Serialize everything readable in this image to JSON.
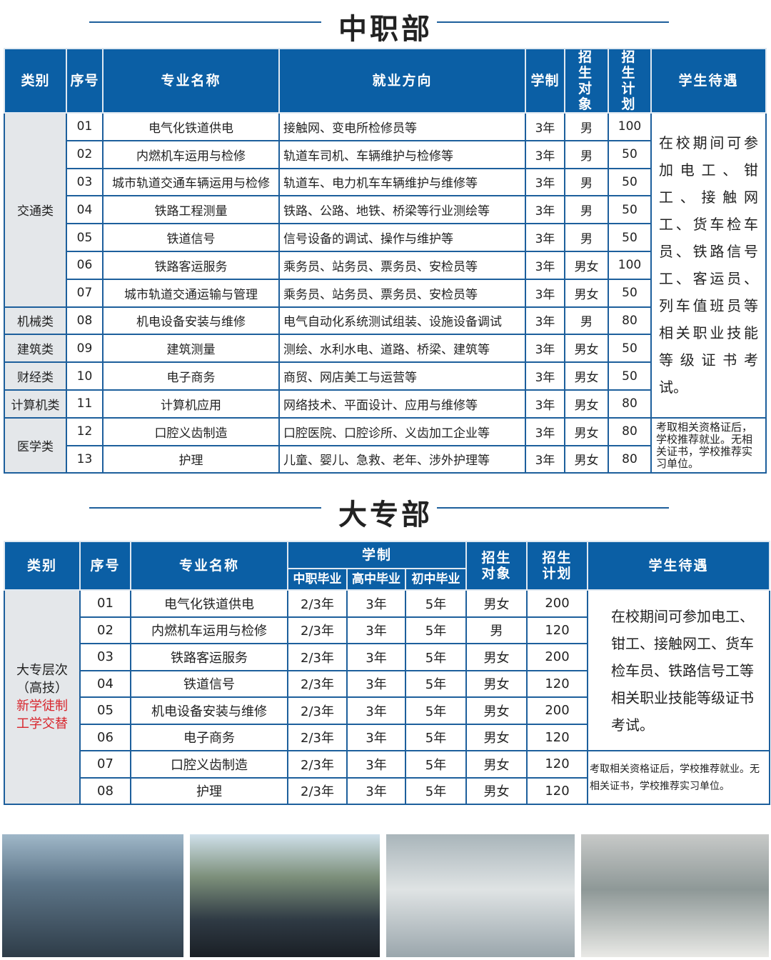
{
  "section1": {
    "title": "中职部",
    "headers": [
      "类别",
      "序号",
      "专业名称",
      "就业方向",
      "学制",
      "招生对象",
      "招生计划",
      "学生待遇"
    ],
    "categories": [
      {
        "name": "交通类",
        "rows": 7
      },
      {
        "name": "机械类",
        "rows": 1
      },
      {
        "name": "建筑类",
        "rows": 1
      },
      {
        "name": "财经类",
        "rows": 1
      },
      {
        "name": "计算机类",
        "rows": 1
      },
      {
        "name": "医学类",
        "rows": 2
      }
    ],
    "rows": [
      {
        "no": "01",
        "major": "电气化铁道供电",
        "job": "接触网、变电所检修员等",
        "years": "3年",
        "gender": "男",
        "plan": "100"
      },
      {
        "no": "02",
        "major": "内燃机车运用与检修",
        "job": "轨道车司机、车辆维护与检修等",
        "years": "3年",
        "gender": "男",
        "plan": "50"
      },
      {
        "no": "03",
        "major": "城市轨道交通车辆运用与检修",
        "job": "轨道车、电力机车车辆维护与维修等",
        "years": "3年",
        "gender": "男",
        "plan": "50"
      },
      {
        "no": "04",
        "major": "铁路工程测量",
        "job": "铁路、公路、地铁、桥梁等行业测绘等",
        "years": "3年",
        "gender": "男",
        "plan": "50"
      },
      {
        "no": "05",
        "major": "铁道信号",
        "job": "信号设备的调试、操作与维护等",
        "years": "3年",
        "gender": "男",
        "plan": "50"
      },
      {
        "no": "06",
        "major": "铁路客运服务",
        "job": "乘务员、站务员、票务员、安检员等",
        "years": "3年",
        "gender": "男女",
        "plan": "100"
      },
      {
        "no": "07",
        "major": "城市轨道交通运输与管理",
        "job": "乘务员、站务员、票务员、安检员等",
        "years": "3年",
        "gender": "男女",
        "plan": "50"
      },
      {
        "no": "08",
        "major": "机电设备安装与维修",
        "job": "电气自动化系统测试组装、设施设备调试",
        "years": "3年",
        "gender": "男",
        "plan": "80"
      },
      {
        "no": "09",
        "major": "建筑测量",
        "job": "测绘、水利水电、道路、桥梁、建筑等",
        "years": "3年",
        "gender": "男女",
        "plan": "50"
      },
      {
        "no": "10",
        "major": "电子商务",
        "job": "商贸、网店美工与运营等",
        "years": "3年",
        "gender": "男女",
        "plan": "50"
      },
      {
        "no": "11",
        "major": "计算机应用",
        "job": "网络技术、平面设计、应用与维修等",
        "years": "3年",
        "gender": "男女",
        "plan": "80"
      },
      {
        "no": "12",
        "major": "口腔义齿制造",
        "job": "口腔医院、口腔诊所、义齿加工企业等",
        "years": "3年",
        "gender": "男女",
        "plan": "80"
      },
      {
        "no": "13",
        "major": "护理",
        "job": "儿童、婴儿、急救、老年、涉外护理等",
        "years": "3年",
        "gender": "男女",
        "plan": "80"
      }
    ],
    "treatments": [
      {
        "text": "在校期间可参加电工、钳工、接触网工、货车检车员、铁路信号工、客运员、列车值班员等相关职业技能等级证书考试。",
        "rows": 11
      },
      {
        "text": "考取相关资格证后，学校推荐就业。无相关证书，学校推荐实习单位。",
        "rows": 2
      }
    ]
  },
  "section2": {
    "title": "大专部",
    "headers": {
      "category": "类别",
      "no": "序号",
      "major": "专业名称",
      "system": "学制",
      "sub": [
        "中职毕业",
        "高中毕业",
        "初中毕业"
      ],
      "gender": "招生对象",
      "plan": "招生计划",
      "treatment": "学生待遇"
    },
    "category_line1": "大专层次",
    "category_line2": "（高技）",
    "category_line3": "新学徒制",
    "category_line4": "工学交替",
    "rows": [
      {
        "no": "01",
        "major": "电气化铁道供电",
        "y1": "2/3年",
        "y2": "3年",
        "y3": "5年",
        "gender": "男女",
        "plan": "200"
      },
      {
        "no": "02",
        "major": "内燃机车运用与检修",
        "y1": "2/3年",
        "y2": "3年",
        "y3": "5年",
        "gender": "男",
        "plan": "120"
      },
      {
        "no": "03",
        "major": "铁路客运服务",
        "y1": "2/3年",
        "y2": "3年",
        "y3": "5年",
        "gender": "男女",
        "plan": "200"
      },
      {
        "no": "04",
        "major": "铁道信号",
        "y1": "2/3年",
        "y2": "3年",
        "y3": "5年",
        "gender": "男女",
        "plan": "120"
      },
      {
        "no": "05",
        "major": "机电设备安装与维修",
        "y1": "2/3年",
        "y2": "3年",
        "y3": "5年",
        "gender": "男女",
        "plan": "200"
      },
      {
        "no": "06",
        "major": "电子商务",
        "y1": "2/3年",
        "y2": "3年",
        "y3": "5年",
        "gender": "男女",
        "plan": "120"
      },
      {
        "no": "07",
        "major": "口腔义齿制造",
        "y1": "2/3年",
        "y2": "3年",
        "y3": "5年",
        "gender": "男女",
        "plan": "120"
      },
      {
        "no": "08",
        "major": "护理",
        "y1": "2/3年",
        "y2": "3年",
        "y3": "5年",
        "gender": "男女",
        "plan": "120"
      }
    ],
    "treatments": [
      {
        "text": "在校期间可参加电工、钳工、接触网工、货车检车员、铁路信号工等相关职业技能等级证书考试。",
        "rows": 6
      },
      {
        "text": "考取相关资格证后，学校推荐就业。无相关证书，学校推荐实习单位。",
        "rows": 2
      }
    ]
  },
  "photos": [
    "train-station-hall-photo",
    "railway-dispatch-control-room-photo",
    "nursing-training-room-photo",
    "dental-training-room-photo"
  ],
  "colors": {
    "header": "#0b5fa5",
    "border": "#1d5f9c",
    "category_bg": "#e4e7ea",
    "accent_red": "#d8262d"
  }
}
